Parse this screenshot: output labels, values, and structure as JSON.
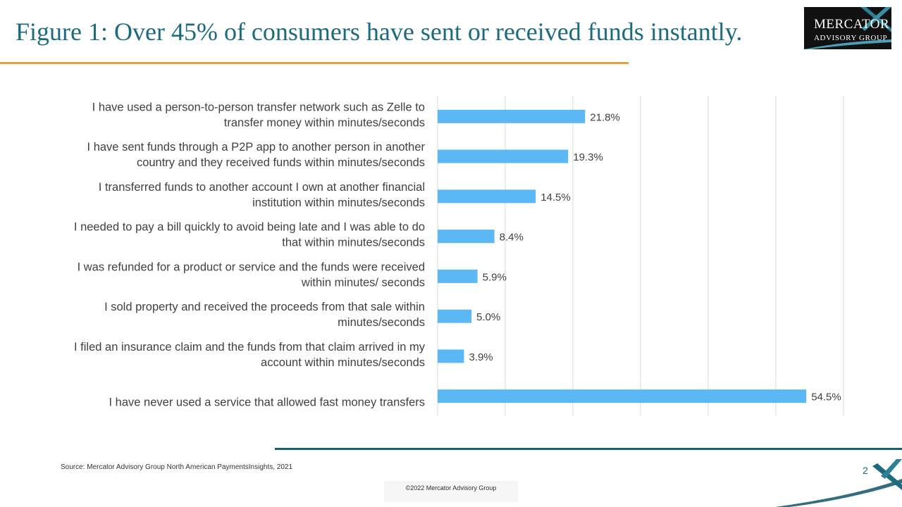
{
  "slide": {
    "title": "Figure 1: Over 45% of consumers have sent or received funds instantly.",
    "source": "Source: Mercator Advisory Group North American PaymentsInsights, 2021",
    "page_number": "2",
    "copyright": "©2022 Mercator Advisory Group"
  },
  "logo": {
    "line1": "MERCATOR",
    "line2": "ADVISORY GROUP",
    "icon": "mercator-x-logo-icon"
  },
  "colors": {
    "title": "#1b6a80",
    "title_rule": "#e0a33a",
    "bar": "#5bb8f5",
    "grid": "#d9d9d9",
    "bottom_rule": "#1c5d72"
  },
  "chart_data": {
    "type": "bar",
    "orientation": "horizontal",
    "categories": [
      [
        "I have used a person-to-person transfer network such as Zelle to",
        "transfer money within minutes/seconds"
      ],
      [
        "I have sent funds through a P2P app to another person in another",
        "country and they received funds within minutes/seconds"
      ],
      [
        "I transferred funds to another account I own at another financial",
        "institution within minutes/seconds"
      ],
      [
        "I needed to pay a bill quickly to avoid being late and I was able to do",
        "that within minutes/seconds"
      ],
      [
        "I was refunded for a product or service and the funds were received",
        "within minutes/ seconds"
      ],
      [
        "I sold property and received the proceeds from that sale within",
        "minutes/seconds"
      ],
      [
        "I filed an insurance claim and the funds from that claim arrived in my",
        "account within minutes/seconds"
      ],
      [
        "",
        "I have never used a service that allowed fast money transfers"
      ]
    ],
    "values": [
      21.8,
      19.3,
      14.5,
      8.4,
      5.9,
      5.0,
      3.9,
      54.5
    ],
    "value_labels": [
      "21.8%",
      "19.3%",
      "14.5%",
      "8.4%",
      "5.9%",
      "5.0%",
      "3.9%",
      "54.5%"
    ],
    "xlim": [
      0,
      60
    ],
    "grid_step": 10,
    "grid": true,
    "legend": "none"
  }
}
